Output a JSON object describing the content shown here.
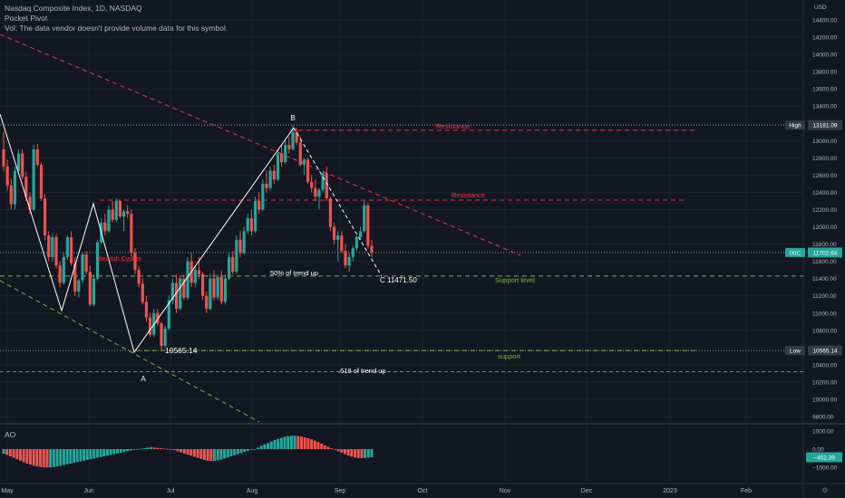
{
  "legend": {
    "title": "Nasdaq Composite Index, 1D, NASDAQ",
    "indicator": "Pocket Pivot",
    "volume_note": "Vol: The data vendor doesn't provide volume data for this symbol."
  },
  "currency": "USD",
  "ao_title": "AO",
  "colors": {
    "up": "#26a69a",
    "down": "#ef5350",
    "bg": "#131722",
    "grid": "#1e222d",
    "resistance": "#f23645",
    "support": "#7cb342",
    "trend": "#ffffff",
    "neutral": "#b2b5be"
  },
  "chart_data": [
    {
      "type": "candlestick",
      "title": "Nasdaq Composite Index, 1D, NASDAQ",
      "ylim": [
        9500,
        14600
      ],
      "yticks": [
        9800,
        10000,
        10200,
        10400,
        10600,
        10800,
        11000,
        11200,
        11400,
        11600,
        11800,
        12000,
        12200,
        12400,
        12600,
        12800,
        13000,
        13200,
        13400,
        13600,
        13800,
        14000,
        14200,
        14400
      ],
      "x_labels": [
        "May",
        "Jun",
        "Jul",
        "Aug",
        "Sep",
        "Oct",
        "Nov",
        "Dec",
        "2023",
        "Feb"
      ],
      "price_labels": [
        {
          "label": "High",
          "value": "13181.09",
          "y": 13181.09
        },
        {
          "label": "IXIC",
          "value": "11702.64",
          "y": 11702.64
        },
        {
          "label": "Low",
          "value": "10565.14",
          "y": 10565.14
        }
      ],
      "annotations": [
        {
          "text": "B",
          "kind": "pivot"
        },
        {
          "text": "A",
          "kind": "pivot"
        },
        {
          "text": "C  11471.50",
          "kind": "pivot"
        },
        {
          "text": "Resistance",
          "kind": "resistance"
        },
        {
          "text": "Resistance",
          "kind": "resistance"
        },
        {
          "text": "Bearish Cypher",
          "kind": "pattern"
        },
        {
          "text": "50% of trend up",
          "kind": "fib"
        },
        {
          "text": "Support level",
          "kind": "support"
        },
        {
          "text": "10565.14",
          "kind": "level"
        },
        {
          "text": "support",
          "kind": "support"
        },
        {
          "text": ".618 of trend up",
          "kind": "fib"
        }
      ],
      "levels": {
        "high": 13181.09,
        "resistance1": 13120,
        "resistance2": 12310,
        "support_level": 11430,
        "low": 10565.14,
        "fib618": 10320
      },
      "candles": [
        [
          12900,
          13100,
          12650,
          12700
        ],
        [
          12700,
          12780,
          12420,
          12480
        ],
        [
          12480,
          12560,
          12200,
          12260
        ],
        [
          12260,
          12700,
          12200,
          12650
        ],
        [
          12650,
          12900,
          12600,
          12850
        ],
        [
          12850,
          12900,
          12550,
          12580
        ],
        [
          12580,
          12640,
          12300,
          12350
        ],
        [
          12350,
          12400,
          12150,
          12200
        ],
        [
          12200,
          12950,
          12180,
          12900
        ],
        [
          12900,
          12960,
          12700,
          12720
        ],
        [
          12720,
          12750,
          12300,
          12330
        ],
        [
          12330,
          12380,
          11850,
          11900
        ],
        [
          11900,
          11950,
          11600,
          11650
        ],
        [
          11650,
          11920,
          11600,
          11880
        ],
        [
          11880,
          11920,
          11520,
          11550
        ],
        [
          11550,
          11600,
          11300,
          11350
        ],
        [
          11350,
          11700,
          11330,
          11650
        ],
        [
          11650,
          11900,
          11620,
          11880
        ],
        [
          11880,
          11950,
          11550,
          11580
        ],
        [
          11580,
          11650,
          11200,
          11250
        ],
        [
          11250,
          11400,
          11180,
          11380
        ],
        [
          11380,
          11700,
          11350,
          11680
        ],
        [
          11680,
          11720,
          11450,
          11480
        ],
        [
          11480,
          11550,
          11080,
          11100
        ],
        [
          11100,
          11450,
          11080,
          11400
        ],
        [
          11400,
          11850,
          11380,
          11820
        ],
        [
          11820,
          12100,
          11800,
          12050
        ],
        [
          12050,
          12150,
          11900,
          11950
        ],
        [
          11950,
          12250,
          11930,
          12200
        ],
        [
          12200,
          12300,
          12050,
          12080
        ],
        [
          12080,
          12330,
          12050,
          12300
        ],
        [
          12300,
          12310,
          12100,
          12120
        ],
        [
          12120,
          12200,
          11950,
          12180
        ],
        [
          12180,
          12250,
          12100,
          12150
        ],
        [
          12150,
          12200,
          11650,
          11700
        ],
        [
          11700,
          11750,
          11450,
          11500
        ],
        [
          11500,
          11550,
          11300,
          11340
        ],
        [
          11340,
          11400,
          11100,
          11130
        ],
        [
          11130,
          11200,
          10900,
          10950
        ],
        [
          10950,
          11000,
          10720,
          10750
        ],
        [
          10750,
          11050,
          10720,
          11000
        ],
        [
          11000,
          11050,
          10850,
          10880
        ],
        [
          10880,
          10900,
          10565,
          10620
        ],
        [
          10620,
          10850,
          10600,
          10820
        ],
        [
          10820,
          11200,
          10800,
          11150
        ],
        [
          11150,
          11400,
          11100,
          11350
        ],
        [
          11350,
          11450,
          11000,
          11050
        ],
        [
          11050,
          11420,
          11030,
          11400
        ],
        [
          11400,
          11450,
          11150,
          11180
        ],
        [
          11180,
          11650,
          11150,
          11600
        ],
        [
          11600,
          11700,
          11300,
          11350
        ],
        [
          11350,
          11550,
          11300,
          11500
        ],
        [
          11500,
          11650,
          11400,
          11450
        ],
        [
          11450,
          11480,
          11150,
          11200
        ],
        [
          11200,
          11250,
          11000,
          11050
        ],
        [
          11050,
          11450,
          11030,
          11400
        ],
        [
          11400,
          11500,
          11150,
          11180
        ],
        [
          11180,
          11450,
          11150,
          11420
        ],
        [
          11420,
          11500,
          11100,
          11130
        ],
        [
          11130,
          11450,
          11100,
          11400
        ],
        [
          11400,
          11700,
          11380,
          11650
        ],
        [
          11650,
          11720,
          11450,
          11480
        ],
        [
          11480,
          11900,
          11460,
          11850
        ],
        [
          11850,
          11950,
          11650,
          11700
        ],
        [
          11700,
          12000,
          11680,
          11950
        ],
        [
          11950,
          12150,
          11920,
          12100
        ],
        [
          12100,
          12200,
          11900,
          11950
        ],
        [
          11950,
          12350,
          11930,
          12300
        ],
        [
          12300,
          12400,
          12150,
          12200
        ],
        [
          12200,
          12550,
          12180,
          12500
        ],
        [
          12500,
          12650,
          12400,
          12450
        ],
        [
          12450,
          12700,
          12420,
          12650
        ],
        [
          12650,
          12720,
          12500,
          12550
        ],
        [
          12550,
          12900,
          12530,
          12850
        ],
        [
          12850,
          12950,
          12700,
          12750
        ],
        [
          12750,
          13000,
          12730,
          12950
        ],
        [
          12950,
          13050,
          12850,
          12900
        ],
        [
          12900,
          13181,
          12880,
          13100
        ],
        [
          13100,
          13150,
          12950,
          12980
        ],
        [
          12980,
          13050,
          12700,
          12720
        ],
        [
          12720,
          12800,
          12600,
          12780
        ],
        [
          12780,
          12800,
          12500,
          12520
        ],
        [
          12520,
          12600,
          12400,
          12450
        ],
        [
          12450,
          12550,
          12300,
          12350
        ],
        [
          12350,
          12450,
          12200,
          12430
        ],
        [
          12430,
          12650,
          12400,
          12620
        ],
        [
          12620,
          12700,
          12300,
          12330
        ],
        [
          12330,
          12350,
          11950,
          12000
        ],
        [
          12000,
          12050,
          11800,
          11850
        ],
        [
          11850,
          11950,
          11600,
          11900
        ],
        [
          11900,
          11950,
          11700,
          11720
        ],
        [
          11720,
          11800,
          11520,
          11550
        ],
        [
          11550,
          11700,
          11480,
          11650
        ],
        [
          11650,
          11780,
          11600,
          11750
        ],
        [
          11750,
          11900,
          11720,
          11880
        ],
        [
          11880,
          12000,
          11850,
          11950
        ],
        [
          11950,
          12300,
          11930,
          12250
        ],
        [
          12250,
          12280,
          11750,
          11780
        ],
        [
          11780,
          11850,
          11650,
          11702
        ]
      ]
    },
    {
      "type": "bar",
      "title": "AO",
      "ylim": [
        -1300,
        1300
      ],
      "yticks": [
        1000,
        0,
        -1000
      ],
      "tick_labels": [
        "1000.00",
        "0.00",
        "−1000.00"
      ],
      "last_value": "−452.39",
      "values": [
        -250,
        -320,
        -400,
        -480,
        -560,
        -640,
        -720,
        -800,
        -860,
        -920,
        -960,
        -990,
        -1010,
        -1020,
        -1010,
        -990,
        -960,
        -920,
        -880,
        -840,
        -800,
        -760,
        -720,
        -680,
        -640,
        -600,
        -560,
        -520,
        -480,
        -440,
        -400,
        -360,
        -320,
        -280,
        -240,
        -200,
        -160,
        -120,
        -80,
        -40,
        -10,
        20,
        50,
        80,
        110,
        90,
        70,
        50,
        30,
        10,
        -20,
        -60,
        -120,
        -180,
        -240,
        -300,
        -360,
        -420,
        -480,
        -540,
        -600,
        -640,
        -660,
        -650,
        -620,
        -580,
        -520,
        -460,
        -400,
        -340,
        -280,
        -220,
        -160,
        -100,
        -40,
        -10,
        80,
        180,
        260,
        340,
        420,
        500,
        560,
        620,
        680,
        720,
        740,
        740,
        720,
        690,
        650,
        600,
        540,
        470,
        390,
        300,
        210,
        120,
        40,
        -40,
        -120,
        -200,
        -280,
        -360,
        -420,
        -460,
        -490,
        -500,
        -490,
        -470,
        -452
      ]
    }
  ]
}
